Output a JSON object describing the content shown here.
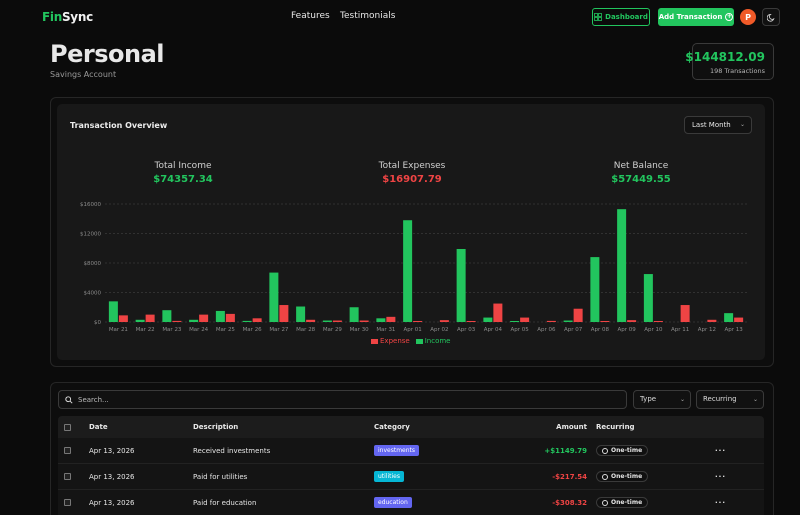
{
  "header": {
    "brand_part1": "Fin",
    "brand_part2": "Sync",
    "nav": [
      "Features",
      "Testimonials"
    ],
    "dashboard_label": "Dashboard",
    "add_transaction_label": "Add Transaction",
    "avatar_initial": "P"
  },
  "account": {
    "title": "Personal",
    "subtitle": "Savings Account",
    "balance": "$144812.09",
    "transactions_count": "198 Transactions"
  },
  "overview": {
    "title": "Transaction Overview",
    "period": "Last Month",
    "total_income_label": "Total Income",
    "total_income": "$74357.34",
    "total_expenses_label": "Total Expenses",
    "total_expenses": "$16907.79",
    "net_balance_label": "Net Balance",
    "net_balance": "$57449.55"
  },
  "chart_data": {
    "type": "bar",
    "categories": [
      "Mar 21",
      "Mar 22",
      "Mar 23",
      "Mar 24",
      "Mar 25",
      "Mar 26",
      "Mar 27",
      "Mar 28",
      "Mar 29",
      "Mar 30",
      "Mar 31",
      "Apr 01",
      "Apr 02",
      "Apr 03",
      "Apr 04",
      "Apr 05",
      "Apr 06",
      "Apr 07",
      "Apr 08",
      "Apr 09",
      "Apr 10",
      "Apr 11",
      "Apr 12",
      "Apr 13"
    ],
    "series": [
      {
        "name": "Expense",
        "color": "#ef4444",
        "values": [
          900,
          1000,
          150,
          1000,
          1100,
          500,
          2300,
          300,
          200,
          200,
          700,
          100,
          250,
          100,
          2500,
          600,
          150,
          1800,
          100,
          250,
          100,
          2300,
          300,
          600
        ]
      },
      {
        "name": "Income",
        "color": "#22c55e",
        "values": [
          2800,
          300,
          1600,
          300,
          1500,
          150,
          6700,
          2100,
          200,
          2000,
          500,
          13800,
          0,
          9900,
          600,
          100,
          0,
          200,
          8800,
          15300,
          6500,
          0,
          0,
          1200
        ]
      }
    ],
    "yticks": [
      "$0",
      "$4000",
      "$8000",
      "$12000",
      "$16000"
    ],
    "ylim": [
      0,
      16000
    ],
    "grid": true,
    "legend": "bottom"
  },
  "table": {
    "search_placeholder": "Search...",
    "type_filter": "Type",
    "recurring_filter": "Recurring",
    "headers": {
      "date": "Date",
      "description": "Description",
      "category": "Category",
      "amount": "Amount",
      "recurring": "Recurring"
    },
    "rows": [
      {
        "date": "Apr 13, 2026",
        "description": "Received investments",
        "category": "investments",
        "category_color": "#6366f1",
        "amount": "+$1149.79",
        "amount_type": "income",
        "recurring": "One-time"
      },
      {
        "date": "Apr 13, 2026",
        "description": "Paid for utilities",
        "category": "utilities",
        "category_color": "#06b6d4",
        "amount": "-$217.54",
        "amount_type": "expense",
        "recurring": "One-time"
      },
      {
        "date": "Apr 13, 2026",
        "description": "Paid for education",
        "category": "education",
        "category_color": "#6366f1",
        "amount": "-$308.32",
        "amount_type": "expense",
        "recurring": "One-time"
      }
    ]
  }
}
